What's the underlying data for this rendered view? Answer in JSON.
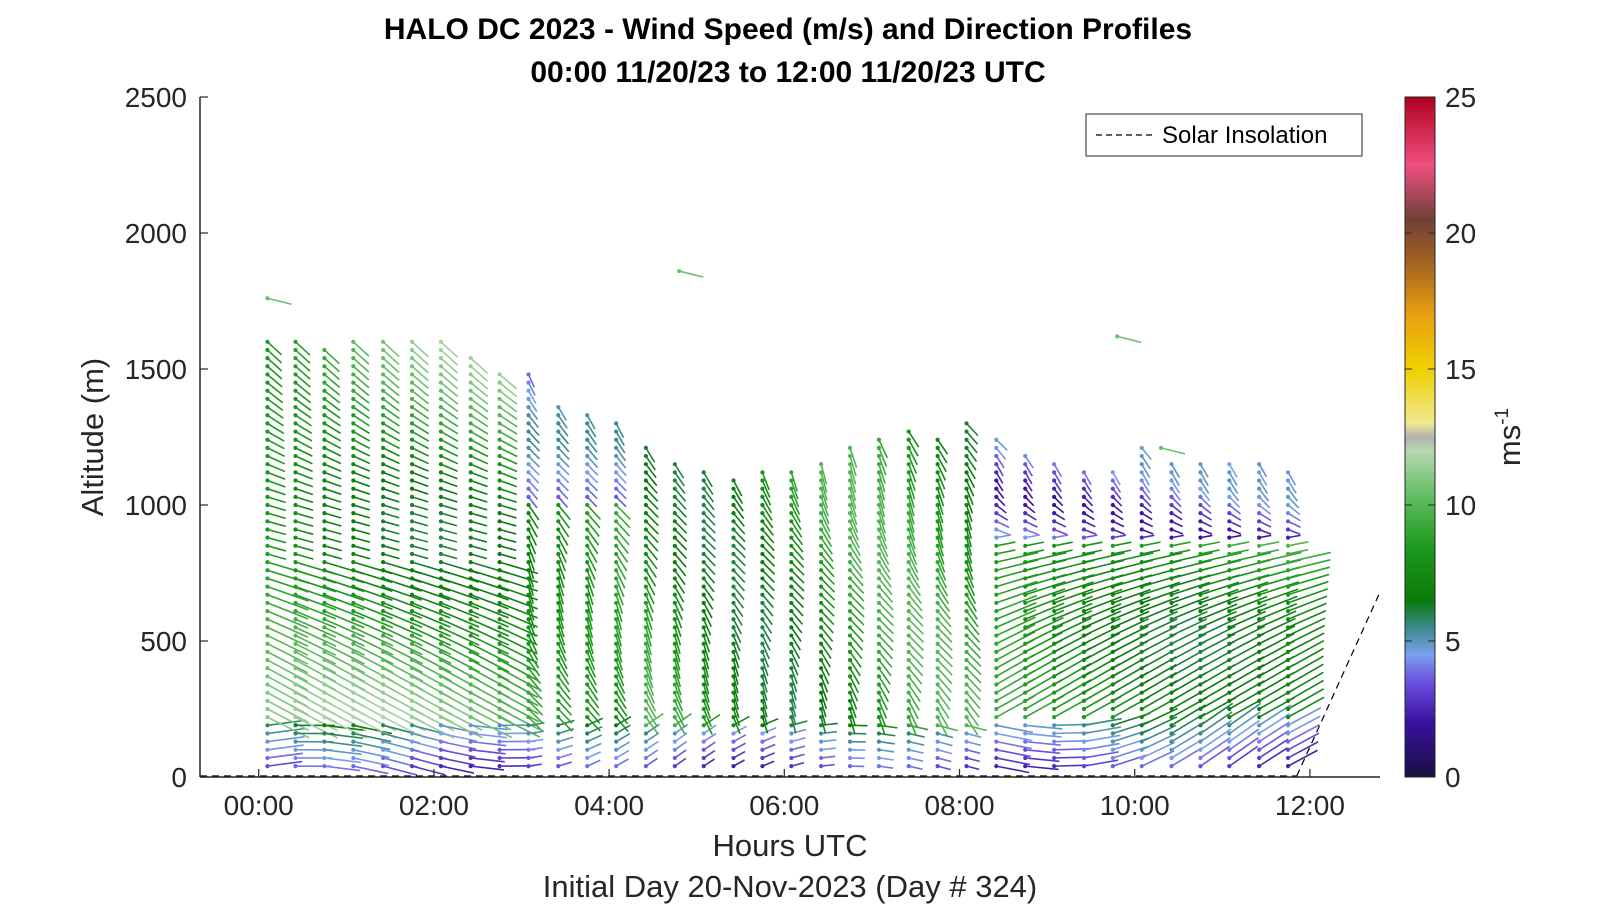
{
  "chart_data": {
    "type": "quiver",
    "title_line1": "HALO DC 2023 - Wind Speed (m/s) and Direction Profiles",
    "title_line2": "00:00 11/20/23 to 12:00 11/20/23  UTC",
    "xlabel": "Hours UTC",
    "xlabel2": "Initial Day 20-Nov-2023 (Day # 324)",
    "ylabel": "Altitude (m)",
    "xlim": [
      -0.67,
      12.8
    ],
    "ylim": [
      0,
      2500
    ],
    "xticks": [
      {
        "value": 0,
        "label": "00:00"
      },
      {
        "value": 2,
        "label": "02:00"
      },
      {
        "value": 4,
        "label": "04:00"
      },
      {
        "value": 6,
        "label": "06:00"
      },
      {
        "value": 8,
        "label": "08:00"
      },
      {
        "value": 10,
        "label": "10:00"
      },
      {
        "value": 12,
        "label": "12:00"
      }
    ],
    "yticks": [
      {
        "value": 0,
        "label": "0"
      },
      {
        "value": 500,
        "label": "500"
      },
      {
        "value": 1000,
        "label": "1000"
      },
      {
        "value": 1500,
        "label": "1500"
      },
      {
        "value": 2000,
        "label": "2000"
      },
      {
        "value": 2500,
        "label": "2500"
      }
    ],
    "legend": {
      "entries": [
        "Solar Insolation"
      ],
      "placement": "top-right"
    },
    "colorbar": {
      "label": "ms",
      "label_sup": "-1",
      "range": [
        0,
        25
      ],
      "ticks": [
        {
          "value": 0,
          "label": "0"
        },
        {
          "value": 5,
          "label": "5"
        },
        {
          "value": 10,
          "label": "10"
        },
        {
          "value": 15,
          "label": "15"
        },
        {
          "value": 20,
          "label": "20"
        },
        {
          "value": 25,
          "label": "25"
        }
      ],
      "stops": [
        {
          "v": 0,
          "c": "#1a1040"
        },
        {
          "v": 2,
          "c": "#3a10a0"
        },
        {
          "v": 3.5,
          "c": "#6a50e0"
        },
        {
          "v": 4.5,
          "c": "#7aa0f0"
        },
        {
          "v": 5.5,
          "c": "#3a8a8a"
        },
        {
          "v": 6.5,
          "c": "#0a7a0a"
        },
        {
          "v": 8.5,
          "c": "#1e9a1e"
        },
        {
          "v": 10.5,
          "c": "#6ac06a"
        },
        {
          "v": 12,
          "c": "#b8d8b0"
        },
        {
          "v": 12.5,
          "c": "#b0b0b0"
        },
        {
          "v": 13,
          "c": "#f0e890"
        },
        {
          "v": 15,
          "c": "#f0d000"
        },
        {
          "v": 17,
          "c": "#e8a010"
        },
        {
          "v": 19,
          "c": "#a06020"
        },
        {
          "v": 20.5,
          "c": "#704038"
        },
        {
          "v": 22.5,
          "c": "#f05080"
        },
        {
          "v": 25,
          "c": "#b00020"
        }
      ]
    },
    "solar_insolation": [
      {
        "x": 11.85,
        "y": 80
      },
      {
        "x": 12.8,
        "y": 680
      }
    ],
    "profiles": [
      {
        "t": 0.1,
        "top": 1610
      },
      {
        "t": 0.42,
        "top": 1610
      },
      {
        "t": 0.75,
        "top": 1590
      },
      {
        "t": 1.08,
        "top": 1610
      },
      {
        "t": 1.42,
        "top": 1610
      },
      {
        "t": 1.75,
        "top": 1610
      },
      {
        "t": 2.08,
        "top": 1610
      },
      {
        "t": 2.42,
        "top": 1540
      },
      {
        "t": 2.75,
        "top": 1500
      },
      {
        "t": 3.08,
        "top": 1500
      },
      {
        "t": 3.42,
        "top": 1370
      },
      {
        "t": 3.75,
        "top": 1330
      },
      {
        "t": 4.08,
        "top": 1320
      },
      {
        "t": 4.42,
        "top": 1220
      },
      {
        "t": 4.75,
        "top": 1150
      },
      {
        "t": 5.08,
        "top": 1120
      },
      {
        "t": 5.42,
        "top": 1090
      },
      {
        "t": 5.75,
        "top": 1130
      },
      {
        "t": 6.08,
        "top": 1130
      },
      {
        "t": 6.42,
        "top": 1160
      },
      {
        "t": 6.75,
        "top": 1220
      },
      {
        "t": 7.08,
        "top": 1260
      },
      {
        "t": 7.42,
        "top": 1290
      },
      {
        "t": 7.75,
        "top": 1250
      },
      {
        "t": 8.08,
        "top": 1310
      },
      {
        "t": 8.42,
        "top": 1250
      },
      {
        "t": 8.75,
        "top": 1190
      },
      {
        "t": 9.08,
        "top": 1160
      },
      {
        "t": 9.42,
        "top": 1140
      },
      {
        "t": 9.75,
        "top": 1120
      },
      {
        "t": 10.08,
        "top": 1210
      },
      {
        "t": 10.42,
        "top": 1160
      },
      {
        "t": 10.75,
        "top": 1150
      },
      {
        "t": 11.08,
        "top": 1150
      },
      {
        "t": 11.42,
        "top": 1150
      },
      {
        "t": 11.75,
        "top": 1140
      }
    ],
    "isolated_barbs": [
      {
        "t": 0.1,
        "alt": 1760
      },
      {
        "t": 4.8,
        "alt": 1860
      },
      {
        "t": 9.8,
        "alt": 1620
      },
      {
        "t": 10.3,
        "alt": 1210
      }
    ]
  }
}
